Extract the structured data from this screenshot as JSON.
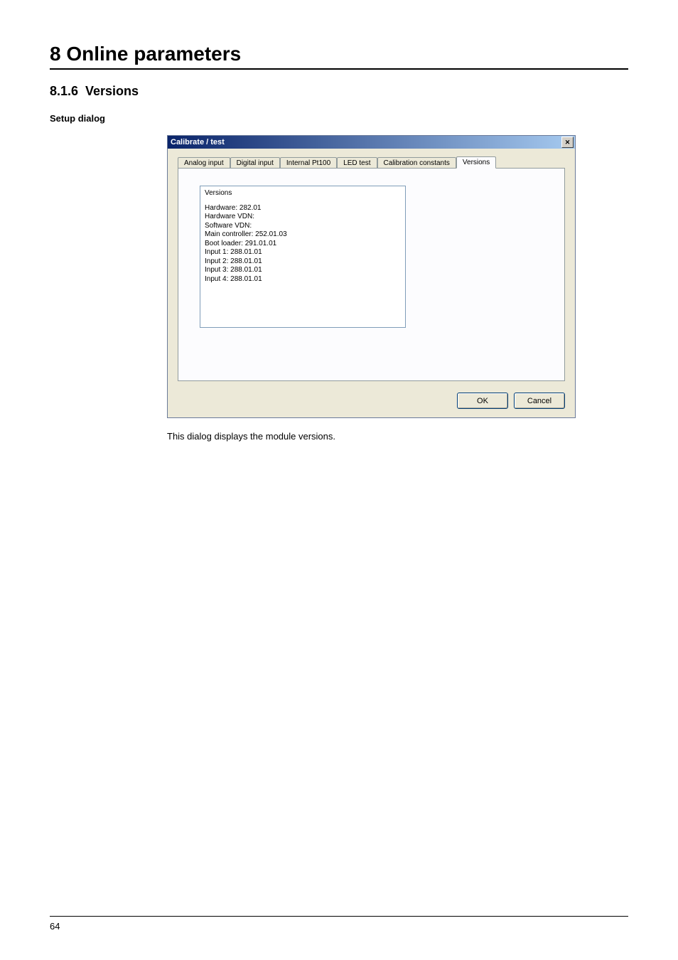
{
  "page": {
    "chapter_title": "8 Online parameters",
    "section_number": "8.1.6",
    "section_title": "Versions",
    "subheading": "Setup dialog",
    "caption": "This dialog displays the module versions.",
    "page_number": "64"
  },
  "dialog": {
    "title": "Calibrate / test",
    "tabs": [
      {
        "label": "Analog input"
      },
      {
        "label": "Digital input"
      },
      {
        "label": "Internal Pt100"
      },
      {
        "label": "LED test"
      },
      {
        "label": "Calibration constants"
      },
      {
        "label": "Versions"
      }
    ],
    "active_tab_index": 5,
    "versions_header": "Versions",
    "versions_lines": [
      "Hardware: 282.01",
      "Hardware VDN:",
      "Software VDN:",
      "Main controller: 252.01.03",
      "Boot loader:  291.01.01",
      "Input 1: 288.01.01",
      "Input 2: 288.01.01",
      "Input 3: 288.01.01",
      "Input 4: 288.01.01"
    ],
    "ok_label": "OK",
    "cancel_label": "Cancel"
  },
  "colors": {
    "page_bg": "#ffffff",
    "dialog_bg": "#ece9d8",
    "titlebar_grad_start": "#0a246a",
    "titlebar_grad_end": "#a6caf0",
    "tab_panel_bg": "#fcfcfe",
    "tab_border": "#919b9c",
    "input_border": "#7f9db9",
    "button_border": "#003c74"
  }
}
